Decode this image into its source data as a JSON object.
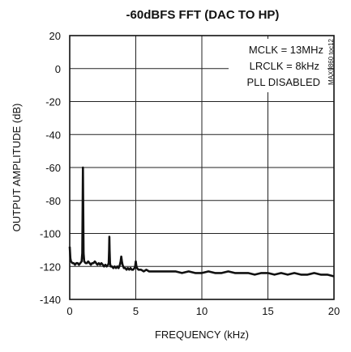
{
  "chart_data": {
    "type": "line",
    "title": "-60dBFS FFT (DAC TO HP)",
    "xlabel": "FREQUENCY (kHz)",
    "ylabel": "OUTPUT AMPLITUDE (dB)",
    "xlim": [
      0,
      20
    ],
    "ylim": [
      -140,
      20
    ],
    "xticks": [
      0,
      5,
      10,
      15,
      20
    ],
    "yticks": [
      20,
      0,
      -20,
      -40,
      -60,
      -80,
      -100,
      -120,
      -140
    ],
    "grid": true,
    "annotations": [
      "MCLK = 13MHz",
      "LRCLK = 8kHz",
      "PLL DISABLED"
    ],
    "figure_code": "MAX9860 toc12",
    "series": [
      {
        "x": [
          0.0,
          0.05,
          0.1,
          0.2,
          0.3,
          0.4,
          0.5,
          0.6,
          0.7,
          0.8,
          0.9,
          0.95,
          0.98,
          1.0,
          1.02,
          1.05,
          1.1,
          1.2,
          1.3,
          1.4,
          1.5,
          1.6,
          1.7,
          1.8,
          1.9,
          2.0,
          2.1,
          2.2,
          2.3,
          2.4,
          2.5,
          2.6,
          2.7,
          2.8,
          2.9,
          2.95,
          2.98,
          3.0,
          3.02,
          3.05,
          3.1,
          3.2,
          3.3,
          3.4,
          3.5,
          3.6,
          3.7,
          3.8,
          3.85,
          3.9,
          3.95,
          4.0,
          4.05,
          4.1,
          4.2,
          4.3,
          4.4,
          4.5,
          4.6,
          4.7,
          4.8,
          4.9,
          4.95,
          5.0,
          5.05,
          5.1,
          5.2,
          5.4,
          5.6,
          5.8,
          6.0,
          6.5,
          7.0,
          7.5,
          8.0,
          8.5,
          9.0,
          9.5,
          10.0,
          10.5,
          11.0,
          11.5,
          12.0,
          12.5,
          13.0,
          13.5,
          14.0,
          14.5,
          15.0,
          15.5,
          16.0,
          16.5,
          17.0,
          17.5,
          18.0,
          18.5,
          19.0,
          19.5,
          20.0
        ],
        "values": [
          -108,
          -115,
          -117,
          -118,
          -118,
          -119,
          -118,
          -118,
          -119,
          -118,
          -117,
          -112,
          -80,
          -60,
          -80,
          -112,
          -117,
          -118,
          -118,
          -117,
          -118,
          -119,
          -118,
          -118,
          -117,
          -118,
          -119,
          -118,
          -119,
          -118,
          -119,
          -120,
          -119,
          -120,
          -119,
          -118,
          -110,
          -102,
          -110,
          -118,
          -120,
          -120,
          -121,
          -120,
          -121,
          -120,
          -121,
          -119,
          -117,
          -114,
          -117,
          -119,
          -120,
          -121,
          -121,
          -122,
          -121,
          -122,
          -121,
          -122,
          -122,
          -121,
          -120,
          -117,
          -120,
          -121,
          -122,
          -122,
          -123,
          -122,
          -123,
          -123,
          -123,
          -123,
          -123,
          -124,
          -123,
          -124,
          -124,
          -123,
          -124,
          -124,
          -123,
          -124,
          -124,
          -124,
          -125,
          -124,
          -124,
          -125,
          -124,
          -125,
          -124,
          -125,
          -125,
          -124,
          -125,
          -125,
          -126
        ]
      }
    ]
  }
}
